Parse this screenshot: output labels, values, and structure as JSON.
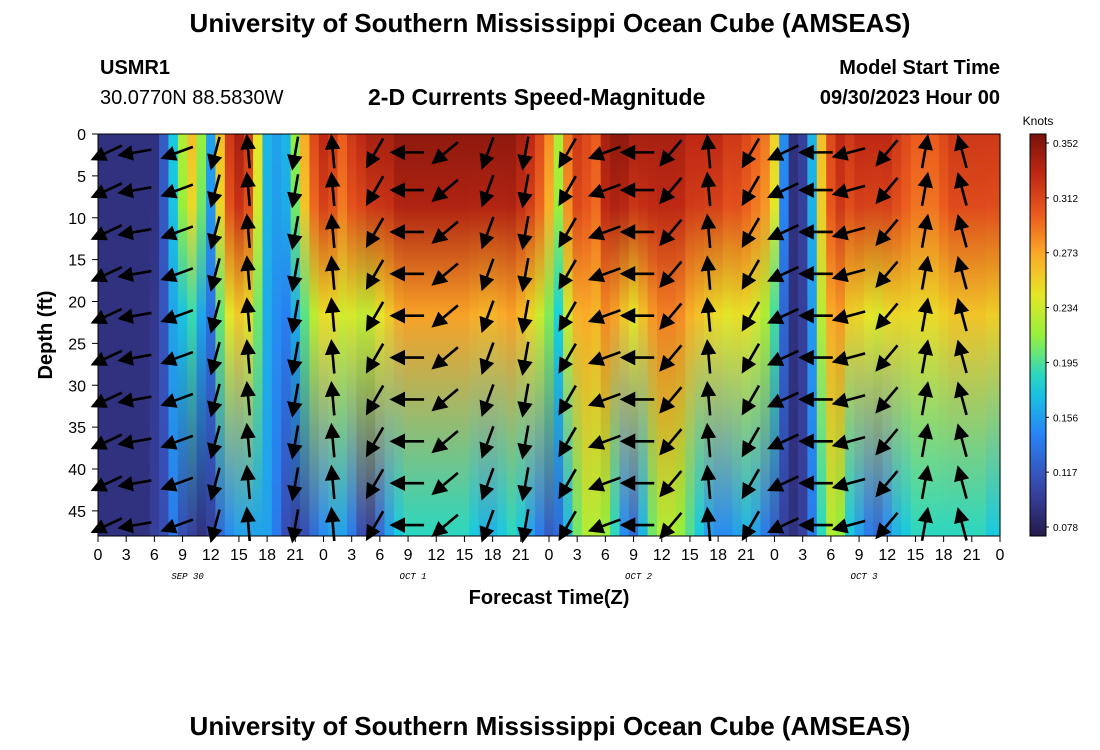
{
  "header": {
    "title": "University of Southern Mississippi Ocean Cube (AMSEAS)",
    "station": "USMR1",
    "coords": "30.0770N  88.5830W",
    "subtitle": "2-D Currents Speed-Magnitude",
    "model_start_label": "Model Start Time",
    "model_start_value": "09/30/2023 Hour 00"
  },
  "footer": {
    "title": "University of Southern Mississippi Ocean Cube (AMSEAS)"
  },
  "chart_data": {
    "type": "heatmap",
    "title": "2-D Currents Speed-Magnitude",
    "xlabel": "Forecast Time(Z)",
    "ylabel": "Depth (ft)",
    "x_tick_labels": [
      "0",
      "3",
      "6",
      "9",
      "12",
      "15",
      "18",
      "21",
      "0",
      "3",
      "6",
      "9",
      "12",
      "15",
      "18",
      "21",
      "0",
      "3",
      "6",
      "9",
      "12",
      "15",
      "18",
      "21",
      "0",
      "3",
      "6",
      "9",
      "12",
      "15",
      "18",
      "21",
      "0"
    ],
    "x_range_hours": [
      0,
      96
    ],
    "date_labels": [
      {
        "hour": 9,
        "text": "SEP 30"
      },
      {
        "hour": 33,
        "text": "OCT 1"
      },
      {
        "hour": 57,
        "text": "OCT 2"
      },
      {
        "hour": 81,
        "text": "OCT 3"
      }
    ],
    "y_ticks": [
      0,
      5,
      10,
      15,
      20,
      25,
      30,
      35,
      40,
      45
    ],
    "y_range_ft": [
      0,
      48
    ],
    "y_inverted": true,
    "colorbar": {
      "label": "Knots",
      "ticks": [
        "0.352",
        "0.312",
        "0.273",
        "0.234",
        "0.195",
        "0.156",
        "0.117",
        "0.078"
      ],
      "min": 0.06,
      "max": 0.36
    },
    "speed_profile_hours": [
      0,
      1,
      2,
      3,
      4,
      5,
      6,
      7,
      8,
      9,
      10,
      11,
      12,
      13,
      14,
      15,
      16,
      17,
      18,
      19,
      20,
      21,
      22,
      23,
      24,
      25,
      26,
      27,
      28,
      29,
      30,
      31,
      32,
      33,
      34,
      35,
      36,
      37,
      38,
      39,
      40,
      41,
      42,
      43,
      44,
      45,
      46,
      47,
      48,
      49,
      50,
      51,
      52,
      53,
      54,
      55,
      56,
      57,
      58,
      59,
      60,
      61,
      62,
      63,
      64,
      65,
      66,
      67,
      68,
      69,
      70,
      71,
      72,
      73,
      74,
      75,
      76,
      77,
      78,
      79,
      80,
      81,
      82,
      83,
      84,
      85,
      86,
      87,
      88,
      89,
      90,
      91,
      92,
      93,
      94,
      95,
      96
    ],
    "speed_surface_knots": [
      0.08,
      0.08,
      0.08,
      0.08,
      0.08,
      0.08,
      0.08,
      0.11,
      0.17,
      0.22,
      0.26,
      0.21,
      0.15,
      0.26,
      0.32,
      0.34,
      0.32,
      0.24,
      0.16,
      0.15,
      0.16,
      0.21,
      0.27,
      0.31,
      0.33,
      0.32,
      0.3,
      0.32,
      0.33,
      0.34,
      0.34,
      0.34,
      0.35,
      0.35,
      0.35,
      0.35,
      0.35,
      0.35,
      0.35,
      0.35,
      0.35,
      0.35,
      0.35,
      0.35,
      0.35,
      0.34,
      0.33,
      0.31,
      0.28,
      0.22,
      0.29,
      0.32,
      0.31,
      0.3,
      0.34,
      0.35,
      0.35,
      0.34,
      0.34,
      0.34,
      0.34,
      0.34,
      0.34,
      0.33,
      0.33,
      0.33,
      0.33,
      0.32,
      0.32,
      0.31,
      0.3,
      0.29,
      0.25,
      0.14,
      0.08,
      0.09,
      0.16,
      0.26,
      0.31,
      0.33,
      0.32,
      0.33,
      0.33,
      0.33,
      0.33,
      0.32,
      0.31,
      0.3,
      0.3,
      0.3,
      0.31,
      0.32,
      0.32,
      0.32,
      0.32,
      0.32,
      0.32
    ],
    "speed_deep_knots": [
      0.08,
      0.08,
      0.08,
      0.08,
      0.08,
      0.08,
      0.09,
      0.1,
      0.13,
      0.1,
      0.09,
      0.08,
      0.09,
      0.12,
      0.14,
      0.15,
      0.15,
      0.15,
      0.15,
      0.13,
      0.1,
      0.09,
      0.1,
      0.12,
      0.14,
      0.15,
      0.15,
      0.13,
      0.1,
      0.09,
      0.12,
      0.15,
      0.17,
      0.18,
      0.18,
      0.18,
      0.18,
      0.18,
      0.18,
      0.18,
      0.17,
      0.16,
      0.16,
      0.17,
      0.18,
      0.17,
      0.15,
      0.13,
      0.11,
      0.12,
      0.16,
      0.2,
      0.22,
      0.22,
      0.21,
      0.18,
      0.14,
      0.12,
      0.16,
      0.2,
      0.22,
      0.22,
      0.21,
      0.19,
      0.17,
      0.15,
      0.14,
      0.14,
      0.15,
      0.16,
      0.15,
      0.13,
      0.11,
      0.09,
      0.08,
      0.09,
      0.13,
      0.18,
      0.22,
      0.21,
      0.17,
      0.15,
      0.13,
      0.12,
      0.14,
      0.16,
      0.17,
      0.18,
      0.18,
      0.18,
      0.18,
      0.18,
      0.18,
      0.18,
      0.18,
      0.17,
      0.17
    ],
    "vector_rows_ft": [
      1,
      5.5,
      10.5,
      15.5,
      20.5,
      25.5,
      30.5,
      35.5,
      40.5,
      45.5
    ],
    "vector_cols": [
      {
        "hour": 1.0,
        "angle_deg": 245
      },
      {
        "hour": 4.0,
        "angle_deg": 260
      },
      {
        "hour": 8.5,
        "angle_deg": 250
      },
      {
        "hour": 12.5,
        "angle_deg": 195
      },
      {
        "hour": 16.0,
        "angle_deg": 355
      },
      {
        "hour": 21.0,
        "angle_deg": 190
      },
      {
        "hour": 25.0,
        "angle_deg": 355
      },
      {
        "hour": 29.5,
        "angle_deg": 210
      },
      {
        "hour": 33.0,
        "angle_deg": 270
      },
      {
        "hour": 37.0,
        "angle_deg": 230
      },
      {
        "hour": 41.5,
        "angle_deg": 200
      },
      {
        "hour": 45.5,
        "angle_deg": 190
      },
      {
        "hour": 50.0,
        "angle_deg": 210
      },
      {
        "hour": 54.0,
        "angle_deg": 250
      },
      {
        "hour": 57.5,
        "angle_deg": 270
      },
      {
        "hour": 61.0,
        "angle_deg": 220
      },
      {
        "hour": 65.0,
        "angle_deg": 355
      },
      {
        "hour": 69.5,
        "angle_deg": 210
      },
      {
        "hour": 73.0,
        "angle_deg": 245
      },
      {
        "hour": 76.5,
        "angle_deg": 270
      },
      {
        "hour": 80.0,
        "angle_deg": 255
      },
      {
        "hour": 84.0,
        "angle_deg": 220
      },
      {
        "hour": 88.0,
        "angle_deg": 10
      },
      {
        "hour": 92.0,
        "angle_deg": 345
      }
    ]
  }
}
